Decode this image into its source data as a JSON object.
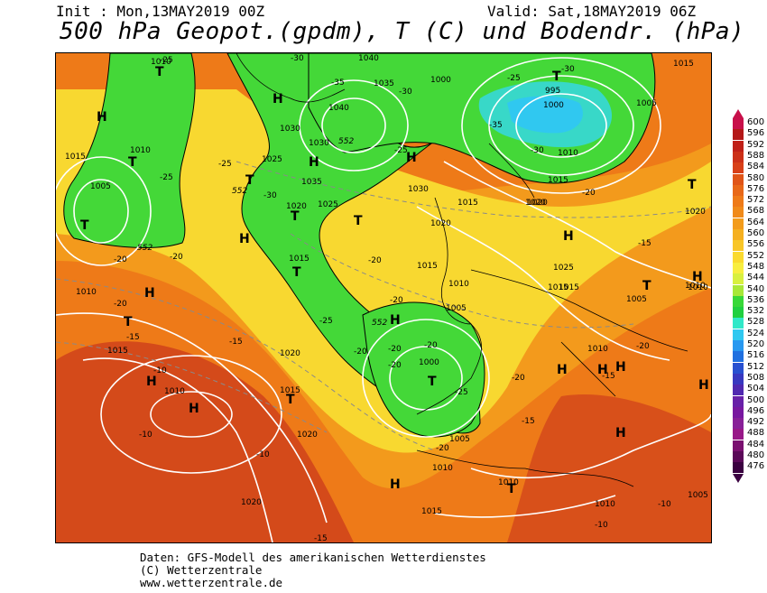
{
  "header": {
    "init": "Init : Mon,13MAY2019 00Z",
    "valid": "Valid: Sat,18MAY2019 06Z",
    "title": "500 hPa Geopot.(gpdm), T (C) und Bodendr. (hPa)"
  },
  "footer": {
    "line1": "Daten: GFS-Modell des amerikanischen Wetterdienstes",
    "line2": "(C) Wetterzentrale",
    "line3": "www.wetterzentrale.de"
  },
  "legend": {
    "values": [
      "600",
      "596",
      "592",
      "588",
      "584",
      "580",
      "576",
      "572",
      "568",
      "564",
      "560",
      "556",
      "552",
      "548",
      "544",
      "540",
      "536",
      "532",
      "528",
      "524",
      "520",
      "516",
      "512",
      "508",
      "504",
      "500",
      "496",
      "492",
      "488",
      "484",
      "480",
      "476"
    ],
    "colors": [
      "#c8104a",
      "#b41818",
      "#c02018",
      "#cc3018",
      "#d84018",
      "#e05518",
      "#e86818",
      "#ee7a18",
      "#f08a1a",
      "#f39c1c",
      "#f5b020",
      "#f8c628",
      "#fada30",
      "#f8ee40",
      "#d8f040",
      "#a8e838",
      "#38d838",
      "#20d040",
      "#30e8c8",
      "#30c8f0",
      "#2898f0",
      "#2070e0",
      "#2850d0",
      "#3838c0",
      "#5028b0",
      "#6820a8",
      "#7818a0",
      "#882098",
      "#981888",
      "#7a1070",
      "#5a0858",
      "#3a0040"
    ]
  },
  "map_labels": {
    "highs": [
      "H",
      "H",
      "H",
      "H",
      "H",
      "H",
      "H",
      "H",
      "H",
      "H",
      "H",
      "H",
      "H",
      "H",
      "H",
      "H",
      "H"
    ],
    "lows": [
      "T",
      "T",
      "T",
      "T",
      "T",
      "T",
      "T",
      "T",
      "T",
      "T",
      "T",
      "T",
      "T",
      "T"
    ],
    "pressure": [
      "1010",
      "1010",
      "1015",
      "1005",
      "1015",
      "1010",
      "1010",
      "1015",
      "1020",
      "1020",
      "1025",
      "1030",
      "1035",
      "1040",
      "1040",
      "1035",
      "1030",
      "1030",
      "1025",
      "1020",
      "1020",
      "1015",
      "1015",
      "1010",
      "1005",
      "1000",
      "1005",
      "1010",
      "1015",
      "1020",
      "1025",
      "1015",
      "1020",
      "1010",
      "1015",
      "1005",
      "1010",
      "1010",
      "1000",
      "995",
      "1000",
      "1005",
      "1010",
      "1015",
      "1015",
      "1005",
      "1020",
      "1010",
      "1010",
      "1015",
      "1020"
    ],
    "temp": [
      "-25",
      "-25",
      "-25",
      "-25",
      "-30",
      "-35",
      "-30",
      "-30",
      "-25",
      "-30",
      "-35",
      "-30",
      "-25",
      "-20",
      "-20",
      "-20",
      "-15",
      "-15",
      "-10",
      "-10",
      "-10",
      "-15",
      "-20",
      "-20",
      "-20",
      "-25",
      "-20",
      "-20",
      "-20",
      "-15",
      "-15",
      "-20",
      "-20",
      "-20",
      "-15",
      "-10",
      "-10",
      "-20"
    ],
    "geopot": [
      "552",
      "552",
      "552",
      "552"
    ]
  }
}
